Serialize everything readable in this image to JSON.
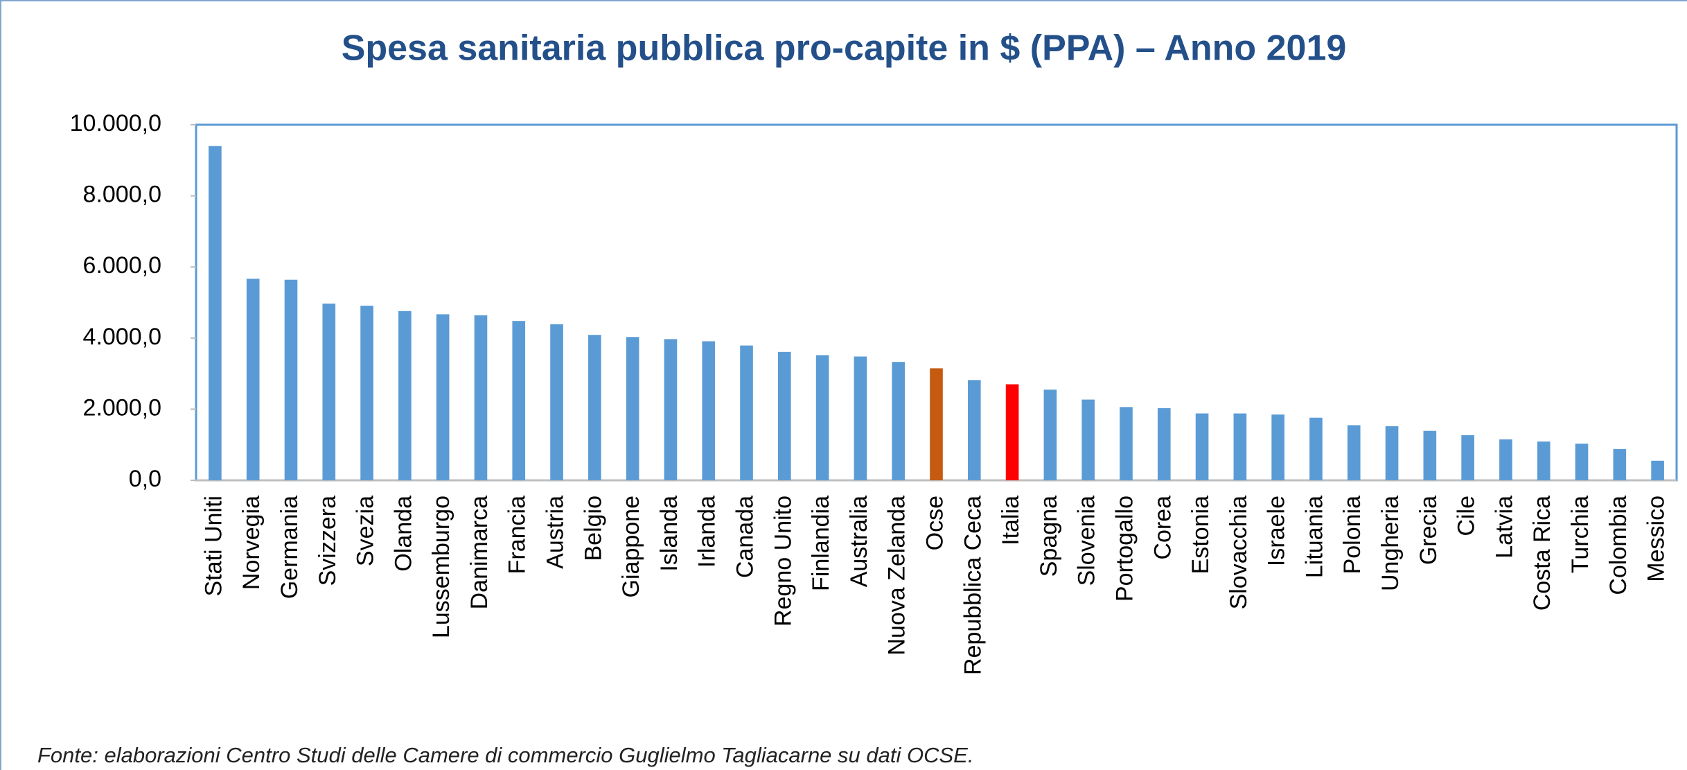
{
  "chart_data": {
    "type": "bar",
    "title": "Spesa sanitaria pubblica pro-capite in $ (PPA) – Anno 2019",
    "note": "Fonte: elaborazioni Centro Studi delle Camere di commercio Guglielmo Tagliacarne su dati OCSE.",
    "categories": [
      "Stati Uniti",
      "Norvegia",
      "Germania",
      "Svizzera",
      "Svezia",
      "Olanda",
      "Lussemburgo",
      "Danimarca",
      "Francia",
      "Austria",
      "Belgio",
      "Giappone",
      "Islanda",
      "Irlanda",
      "Canada",
      "Regno Unito",
      "Finlandia",
      "Australia",
      "Nuova Zelanda",
      "Ocse",
      "Repubblica Ceca",
      "Italia",
      "Spagna",
      "Slovenia",
      "Portogallo",
      "Corea",
      "Estonia",
      "Slovacchia",
      "Israele",
      "Lituania",
      "Polonia",
      "Ungheria",
      "Grecia",
      "Cile",
      "Latvia",
      "Costa Rica",
      "Turchia",
      "Colombia",
      "Messico"
    ],
    "values": [
      9400,
      5670,
      5640,
      4970,
      4910,
      4760,
      4670,
      4640,
      4480,
      4390,
      4090,
      4030,
      3970,
      3910,
      3790,
      3610,
      3520,
      3480,
      3330,
      3150,
      2820,
      2700,
      2550,
      2270,
      2060,
      2030,
      1880,
      1880,
      1850,
      1760,
      1550,
      1520,
      1390,
      1270,
      1150,
      1090,
      1030,
      880,
      550
    ],
    "color": "#5b9bd5",
    "highlight_colors": {
      "Ocse": "#c55a11",
      "Italia": "#ff0000"
    },
    "ylim": [
      0,
      10000
    ],
    "yticks": [
      {
        "value": 0,
        "label": "0,0"
      },
      {
        "value": 2000,
        "label": "2.000,0"
      },
      {
        "value": 4000,
        "label": "4.000,0"
      },
      {
        "value": 6000,
        "label": "6.000,0"
      },
      {
        "value": 8000,
        "label": "8.000,0"
      },
      {
        "value": 10000,
        "label": "10.000,0"
      }
    ],
    "grid": false
  }
}
